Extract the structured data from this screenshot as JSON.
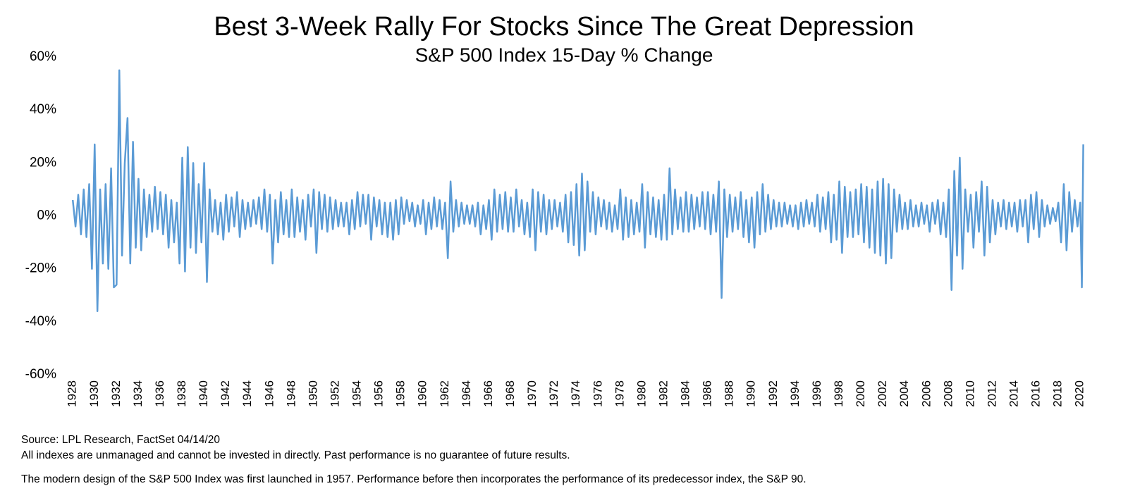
{
  "chart_data": {
    "type": "line",
    "title": "Best 3-Week Rally For Stocks Since The Great Depression",
    "subtitle": "S&P 500 Index 15-Day % Change",
    "notes": [
      "Source: LPL Research, FactSet 04/14/20",
      "All indexes are unmanaged  and cannot be invested in directly. Past performance is no guarantee of future results.",
      "The modern design of the S&P 500 Index was first launched in 1957. Performance before then incorporates the performance of its predecessor index, the S&P 90."
    ],
    "xlim": [
      1927.6,
      2020.5
    ],
    "xticks": [
      1928,
      1930,
      1932,
      1934,
      1936,
      1938,
      1940,
      1942,
      1944,
      1946,
      1948,
      1950,
      1952,
      1954,
      1956,
      1958,
      1960,
      1962,
      1964,
      1966,
      1968,
      1970,
      1972,
      1974,
      1976,
      1978,
      1980,
      1982,
      1984,
      1986,
      1988,
      1990,
      1992,
      1994,
      1996,
      1998,
      2000,
      2002,
      2004,
      2006,
      2008,
      2010,
      2012,
      2014,
      2016,
      2018,
      2020
    ],
    "ylim": [
      -60,
      60
    ],
    "yticks": [
      {
        "value": 60,
        "label": "60%"
      },
      {
        "value": 40,
        "label": "40%"
      },
      {
        "value": 20,
        "label": "20%"
      },
      {
        "value": 0,
        "label": "0%"
      },
      {
        "value": -20,
        "label": "-20%"
      },
      {
        "value": -40,
        "label": "-40%"
      },
      {
        "value": -60,
        "label": "-60%"
      }
    ],
    "x": [
      1928,
      1928.25,
      1928.5,
      1928.75,
      1929,
      1929.25,
      1929.5,
      1929.75,
      1930,
      1930.25,
      1930.5,
      1930.75,
      1931,
      1931.25,
      1931.5,
      1931.75,
      1932,
      1932.25,
      1932.5,
      1932.75,
      1933,
      1933.25,
      1933.5,
      1933.75,
      1934,
      1934.25,
      1934.5,
      1934.75,
      1935,
      1935.25,
      1935.5,
      1935.75,
      1936,
      1936.25,
      1936.5,
      1936.75,
      1937,
      1937.25,
      1937.5,
      1937.75,
      1938,
      1938.25,
      1938.5,
      1938.75,
      1939,
      1939.25,
      1939.5,
      1939.75,
      1940,
      1940.25,
      1940.5,
      1940.75,
      1941,
      1941.25,
      1941.5,
      1941.75,
      1942,
      1942.25,
      1942.5,
      1942.75,
      1943,
      1943.25,
      1943.5,
      1943.75,
      1944,
      1944.25,
      1944.5,
      1944.75,
      1945,
      1945.25,
      1945.5,
      1945.75,
      1946,
      1946.25,
      1946.5,
      1946.75,
      1947,
      1947.25,
      1947.5,
      1947.75,
      1948,
      1948.25,
      1948.5,
      1948.75,
      1949,
      1949.25,
      1949.5,
      1949.75,
      1950,
      1950.25,
      1950.5,
      1950.75,
      1951,
      1951.25,
      1951.5,
      1951.75,
      1952,
      1952.25,
      1952.5,
      1952.75,
      1953,
      1953.25,
      1953.5,
      1953.75,
      1954,
      1954.25,
      1954.5,
      1954.75,
      1955,
      1955.25,
      1955.5,
      1955.75,
      1956,
      1956.25,
      1956.5,
      1956.75,
      1957,
      1957.25,
      1957.5,
      1957.75,
      1958,
      1958.25,
      1958.5,
      1958.75,
      1959,
      1959.25,
      1959.5,
      1959.75,
      1960,
      1960.25,
      1960.5,
      1960.75,
      1961,
      1961.25,
      1961.5,
      1961.75,
      1962,
      1962.25,
      1962.5,
      1962.75,
      1963,
      1963.25,
      1963.5,
      1963.75,
      1964,
      1964.25,
      1964.5,
      1964.75,
      1965,
      1965.25,
      1965.5,
      1965.75,
      1966,
      1966.25,
      1966.5,
      1966.75,
      1967,
      1967.25,
      1967.5,
      1967.75,
      1968,
      1968.25,
      1968.5,
      1968.75,
      1969,
      1969.25,
      1969.5,
      1969.75,
      1970,
      1970.25,
      1970.5,
      1970.75,
      1971,
      1971.25,
      1971.5,
      1971.75,
      1972,
      1972.25,
      1972.5,
      1972.75,
      1973,
      1973.25,
      1973.5,
      1973.75,
      1974,
      1974.25,
      1974.5,
      1974.75,
      1975,
      1975.25,
      1975.5,
      1975.75,
      1976,
      1976.25,
      1976.5,
      1976.75,
      1977,
      1977.25,
      1977.5,
      1977.75,
      1978,
      1978.25,
      1978.5,
      1978.75,
      1979,
      1979.25,
      1979.5,
      1979.75,
      1980,
      1980.25,
      1980.5,
      1980.75,
      1981,
      1981.25,
      1981.5,
      1981.75,
      1982,
      1982.25,
      1982.5,
      1982.75,
      1983,
      1983.25,
      1983.5,
      1983.75,
      1984,
      1984.25,
      1984.5,
      1984.75,
      1985,
      1985.25,
      1985.5,
      1985.75,
      1986,
      1986.25,
      1986.5,
      1986.75,
      1987,
      1987.25,
      1987.5,
      1987.75,
      1988,
      1988.25,
      1988.5,
      1988.75,
      1989,
      1989.25,
      1989.5,
      1989.75,
      1990,
      1990.25,
      1990.5,
      1990.75,
      1991,
      1991.25,
      1991.5,
      1991.75,
      1992,
      1992.25,
      1992.5,
      1992.75,
      1993,
      1993.25,
      1993.5,
      1993.75,
      1994,
      1994.25,
      1994.5,
      1994.75,
      1995,
      1995.25,
      1995.5,
      1995.75,
      1996,
      1996.25,
      1996.5,
      1996.75,
      1997,
      1997.25,
      1997.5,
      1997.75,
      1998,
      1998.25,
      1998.5,
      1998.75,
      1999,
      1999.25,
      1999.5,
      1999.75,
      2000,
      2000.25,
      2000.5,
      2000.75,
      2001,
      2001.25,
      2001.5,
      2001.75,
      2002,
      2002.25,
      2002.5,
      2002.75,
      2003,
      2003.25,
      2003.5,
      2003.75,
      2004,
      2004.25,
      2004.5,
      2004.75,
      2005,
      2005.25,
      2005.5,
      2005.75,
      2006,
      2006.25,
      2006.5,
      2006.75,
      2007,
      2007.25,
      2007.5,
      2007.75,
      2008,
      2008.25,
      2008.5,
      2008.75,
      2009,
      2009.25,
      2009.5,
      2009.75,
      2010,
      2010.25,
      2010.5,
      2010.75,
      2011,
      2011.25,
      2011.5,
      2011.75,
      2012,
      2012.25,
      2012.5,
      2012.75,
      2013,
      2013.25,
      2013.5,
      2013.75,
      2014,
      2014.25,
      2014.5,
      2014.75,
      2015,
      2015.25,
      2015.5,
      2015.75,
      2016,
      2016.25,
      2016.5,
      2016.75,
      2017,
      2017.25,
      2017.5,
      2017.75,
      2018,
      2018.25,
      2018.5,
      2018.75,
      2019,
      2019.25,
      2019.5,
      2019.75,
      2020,
      2020.15,
      2020.28
    ],
    "series": [
      {
        "color": "#5b9bd5",
        "values": [
          6,
          -4,
          8,
          -7,
          10,
          -8,
          12,
          -20,
          27,
          -36,
          10,
          -18,
          12,
          -20,
          18,
          -27,
          -26,
          55,
          -15,
          20,
          37,
          -18,
          28,
          -12,
          14,
          -13,
          10,
          -8,
          8,
          -6,
          11,
          -5,
          9,
          -7,
          8,
          -12,
          6,
          -10,
          5,
          -18,
          22,
          -21,
          26,
          -12,
          20,
          -14,
          12,
          -10,
          20,
          -25,
          10,
          -6,
          6,
          -7,
          5,
          -9,
          8,
          -6,
          7,
          -4,
          9,
          -8,
          6,
          -5,
          5,
          -4,
          6,
          -3,
          7,
          -5,
          10,
          -6,
          8,
          -18,
          6,
          -10,
          9,
          -7,
          6,
          -8,
          10,
          -8,
          7,
          -6,
          6,
          -9,
          8,
          -4,
          10,
          -14,
          9,
          -5,
          8,
          -6,
          7,
          -5,
          6,
          -4,
          5,
          -4,
          5,
          -7,
          6,
          -5,
          9,
          -4,
          8,
          -3,
          8,
          -9,
          7,
          -4,
          6,
          -7,
          5,
          -8,
          5,
          -9,
          6,
          -7,
          7,
          -3,
          6,
          -2,
          5,
          -4,
          4,
          -3,
          6,
          -7,
          5,
          -5,
          7,
          -4,
          6,
          -5,
          5,
          -16,
          13,
          -6,
          6,
          -4,
          5,
          -3,
          4,
          -3,
          4,
          -4,
          5,
          -7,
          4,
          -5,
          6,
          -9,
          10,
          -6,
          8,
          -5,
          9,
          -6,
          7,
          -6,
          10,
          -4,
          6,
          -7,
          5,
          -8,
          10,
          -13,
          9,
          -6,
          8,
          -7,
          6,
          -5,
          6,
          -4,
          5,
          -6,
          8,
          -10,
          9,
          -11,
          12,
          -15,
          16,
          -13,
          13,
          -6,
          9,
          -7,
          7,
          -4,
          6,
          -5,
          5,
          -6,
          4,
          -5,
          10,
          -9,
          7,
          -8,
          6,
          -7,
          5,
          -6,
          12,
          -12,
          9,
          -7,
          7,
          -8,
          6,
          -9,
          8,
          -9,
          18,
          -7,
          10,
          -5,
          7,
          -6,
          9,
          -6,
          8,
          -5,
          7,
          -4,
          9,
          -5,
          9,
          -7,
          8,
          -6,
          13,
          -31,
          10,
          -8,
          8,
          -6,
          7,
          -5,
          9,
          -8,
          6,
          -10,
          7,
          -12,
          9,
          -7,
          12,
          -6,
          8,
          -5,
          6,
          -4,
          5,
          -4,
          5,
          -3,
          4,
          -4,
          4,
          -5,
          5,
          -4,
          6,
          -3,
          5,
          -4,
          8,
          -6,
          7,
          -5,
          9,
          -10,
          8,
          -9,
          13,
          -14,
          11,
          -8,
          9,
          -8,
          10,
          -7,
          12,
          -10,
          11,
          -12,
          10,
          -14,
          13,
          -15,
          14,
          -18,
          12,
          -16,
          10,
          -6,
          8,
          -5,
          5,
          -5,
          6,
          -4,
          4,
          -4,
          5,
          -3,
          4,
          -6,
          5,
          -3,
          6,
          -7,
          5,
          -8,
          10,
          -28,
          17,
          -15,
          22,
          -20,
          10,
          -6,
          8,
          -12,
          9,
          -6,
          13,
          -15,
          11,
          -10,
          6,
          -7,
          5,
          -4,
          6,
          -5,
          5,
          -4,
          5,
          -6,
          6,
          -4,
          6,
          -10,
          8,
          -5,
          9,
          -8,
          6,
          -4,
          4,
          -3,
          3,
          -2,
          5,
          -10,
          12,
          -13,
          9,
          -6,
          6,
          -4,
          5,
          -27,
          27
        ]
      }
    ]
  }
}
